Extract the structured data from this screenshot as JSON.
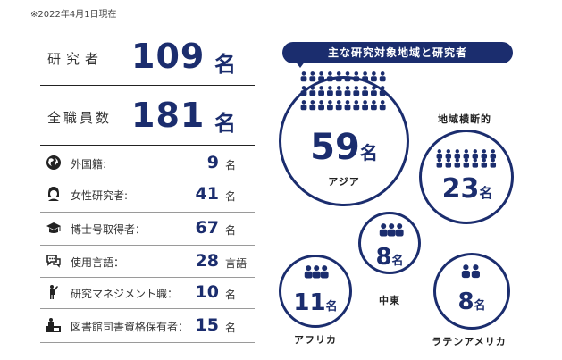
{
  "note": "※2022年4月1日現在",
  "stats": {
    "researchers": {
      "label": "研究者",
      "value": "109",
      "unit": "名"
    },
    "all_staff": {
      "label": "全職員数",
      "value": "181",
      "unit": "名"
    },
    "rows": [
      {
        "icon": "globe-icon",
        "label": "外国籍:",
        "value": "9",
        "unit": "名"
      },
      {
        "icon": "female-person-icon",
        "label": "女性研究者:",
        "value": "41",
        "unit": "名"
      },
      {
        "icon": "graduation-cap-icon",
        "label": "博士号取得者：",
        "value": "67",
        "unit": "名"
      },
      {
        "icon": "speech-bubbles-icon",
        "label": "使用言語：",
        "value": "28",
        "unit": "言語"
      },
      {
        "icon": "presenter-icon",
        "label": "研究マネジメント職：",
        "value": "10",
        "unit": "名"
      },
      {
        "icon": "librarian-desk-icon",
        "label": "図書館司書資格保有者：",
        "value": "15",
        "unit": "名"
      }
    ]
  },
  "regions": {
    "banner": "主な研究対象地域と研究者",
    "asia": {
      "name": "アジア",
      "value": "59",
      "unit": "名"
    },
    "multi": {
      "name": "地域横断的",
      "value": "23",
      "unit": "名"
    },
    "middle_east": {
      "name": "中東",
      "value": "8",
      "unit": "名"
    },
    "africa": {
      "name": "アフリカ",
      "value": "11",
      "unit": "名"
    },
    "latin_america": {
      "name": "ラテンアメリカ",
      "value": "8",
      "unit": "名"
    }
  },
  "colors": {
    "accent": "#1b2d6e"
  }
}
